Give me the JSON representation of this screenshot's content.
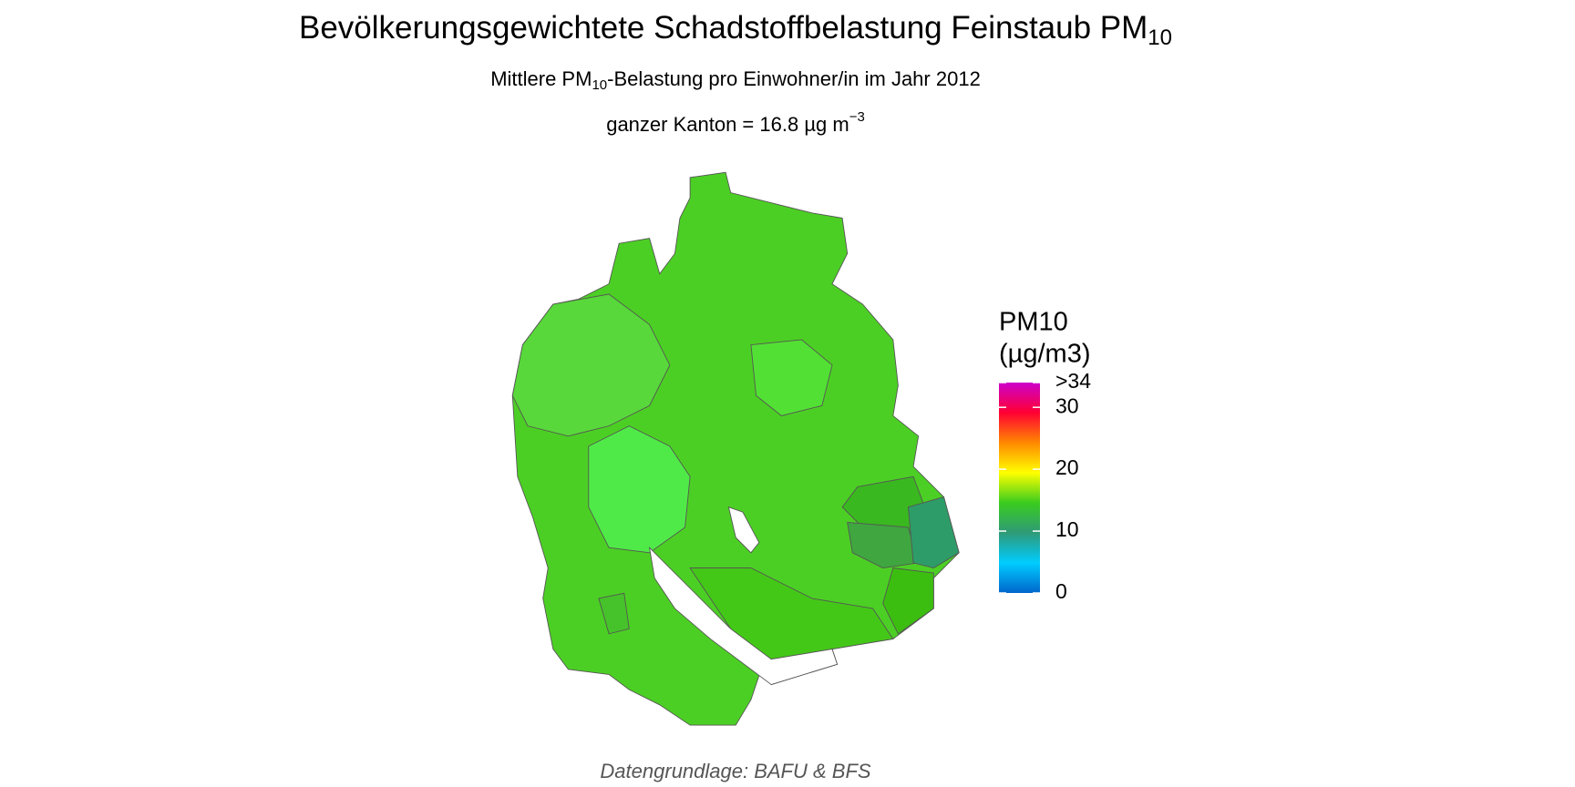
{
  "header": {
    "title": {
      "main": "Bevölkerungsgewichtete Schadstoffbelastung Feinstaub PM",
      "sub": "10"
    },
    "subtitle": {
      "before": "Mittlere PM",
      "sub": "10",
      "after": "-Belastung pro Einwohner/in im Jahr 2012"
    },
    "canton": {
      "label": "ganzer Kanton = ",
      "value": 16.8,
      "unit": " µg m",
      "sup": "−3"
    }
  },
  "legend": {
    "title": [
      "PM10",
      "(µg/m3)"
    ],
    "lim": [
      0,
      34
    ],
    "ticks": [
      0,
      10,
      20,
      30,
      {
        "value": 34,
        "label": ">34"
      }
    ],
    "colors": [
      "#0066cc",
      "#00ccff",
      "#2f9a78",
      "#3acc1e",
      "#ffff00",
      "#ff8800",
      "#ff0033",
      "#cc00cc"
    ]
  },
  "source": "Datengrundlage: BAFU & BFS"
}
